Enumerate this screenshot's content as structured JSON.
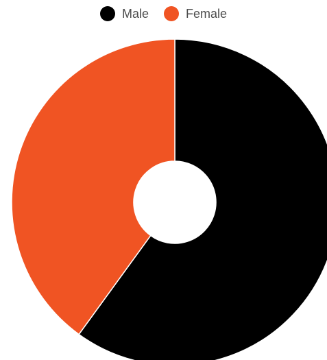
{
  "chart_data": {
    "type": "pie",
    "donut": true,
    "legend_position": "top-center",
    "series": [
      {
        "name": "Male",
        "value": 60,
        "color": "#000000"
      },
      {
        "name": "Female",
        "value": 40,
        "color": "#f05423"
      }
    ]
  }
}
